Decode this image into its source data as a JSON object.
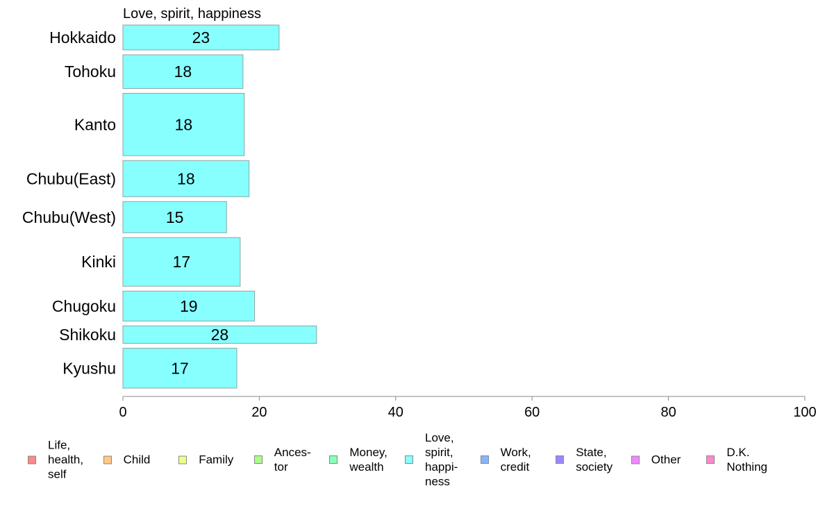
{
  "chart_data": {
    "type": "bar",
    "orientation": "horizontal",
    "title": "Love, spirit, happiness",
    "categories": [
      "Hokkaido",
      "Tohoku",
      "Kanto",
      "Chubu(East)",
      "Chubu(West)",
      "Kinki",
      "Chugoku",
      "Shikoku",
      "Kyushu"
    ],
    "values": [
      22.9,
      17.6,
      17.8,
      18.5,
      15.2,
      17.2,
      19.3,
      28.4,
      16.7
    ],
    "data_labels": [
      "23",
      "18",
      "18",
      "18",
      "15",
      "17",
      "19",
      "28",
      "17"
    ],
    "relative_widths": [
      1.0,
      1.35,
      2.5,
      1.45,
      1.25,
      1.95,
      1.2,
      0.7,
      1.6
    ],
    "xlim": [
      0,
      100
    ],
    "xticks": [
      "0",
      "20",
      "40",
      "60",
      "80",
      "100"
    ],
    "xlabel": "",
    "ylabel": "",
    "bar_color": "#88ffff",
    "bar_edge_color": "#8fa3a3",
    "grid": false,
    "legend_position": "bottom",
    "legend": [
      {
        "label": "Life,\nhealth,\nself",
        "color": "#ff8888"
      },
      {
        "label": "Child",
        "color": "#ffc888"
      },
      {
        "label": "Family",
        "color": "#f0ff88"
      },
      {
        "label": "Ances-\ntor",
        "color": "#aaff88"
      },
      {
        "label": "Money,\nwealth",
        "color": "#88ffbb"
      },
      {
        "label": "Love,\nspirit,\nhappi-\nness",
        "color": "#88ffff"
      },
      {
        "label": "Work,\ncredit",
        "color": "#88b4ff"
      },
      {
        "label": "State,\nsociety",
        "color": "#9988ff"
      },
      {
        "label": "Other",
        "color": "#ee88ff"
      },
      {
        "label": "D.K.\nNothing",
        "color": "#ff88cc"
      }
    ]
  }
}
